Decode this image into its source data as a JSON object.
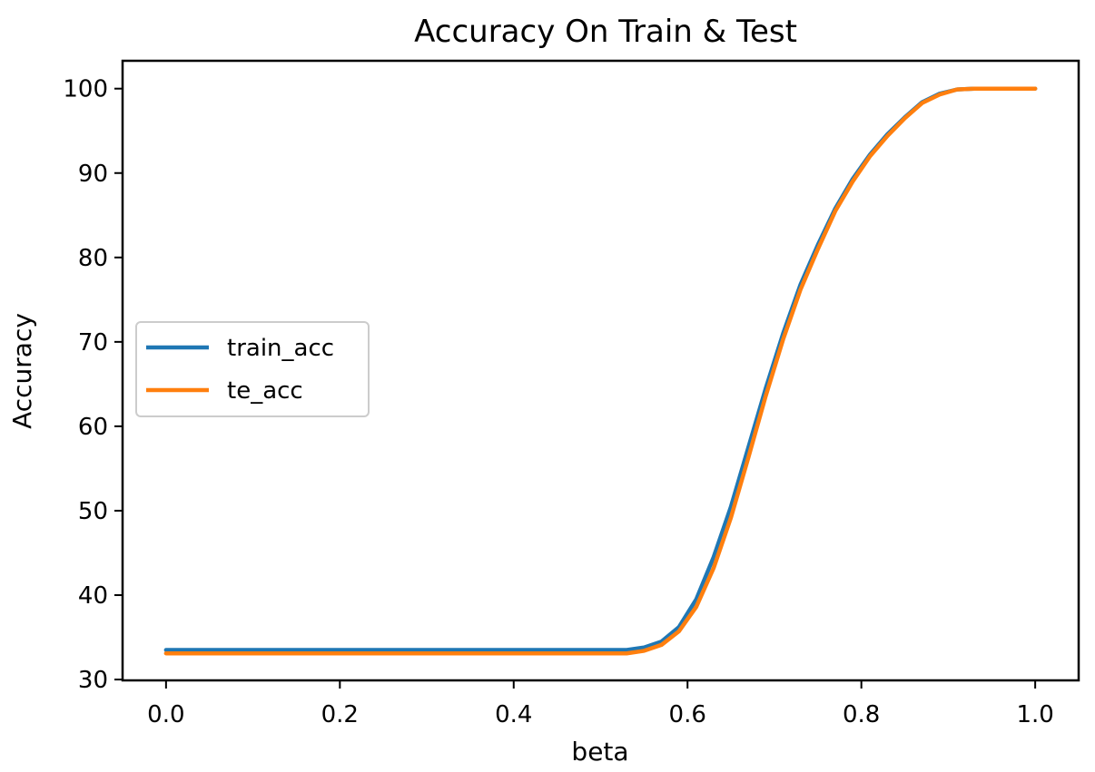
{
  "chart_data": {
    "type": "line",
    "title": "Accuracy On Train & Test",
    "xlabel": "beta",
    "ylabel": "Accuracy",
    "xlim": [
      -0.05,
      1.05
    ],
    "ylim": [
      29.9,
      103.3
    ],
    "xticks": [
      0.0,
      0.2,
      0.4,
      0.6,
      0.8,
      1.0
    ],
    "xtick_labels": [
      "0.0",
      "0.2",
      "0.4",
      "0.6",
      "0.8",
      "1.0"
    ],
    "yticks": [
      30,
      40,
      50,
      60,
      70,
      80,
      90,
      100
    ],
    "ytick_labels": [
      "30",
      "40",
      "50",
      "60",
      "70",
      "80",
      "90",
      "100"
    ],
    "grid": false,
    "legend_position": "center-left",
    "series": [
      {
        "name": "train_acc",
        "color": "#1f77b4",
        "x": [
          0.0,
          0.1,
          0.2,
          0.3,
          0.4,
          0.5,
          0.53,
          0.55,
          0.57,
          0.59,
          0.61,
          0.63,
          0.65,
          0.67,
          0.69,
          0.71,
          0.73,
          0.75,
          0.77,
          0.79,
          0.81,
          0.83,
          0.85,
          0.87,
          0.89,
          0.91,
          0.93,
          0.95,
          1.0
        ],
        "y": [
          33.5,
          33.5,
          33.5,
          33.5,
          33.5,
          33.5,
          33.5,
          33.8,
          34.5,
          36.2,
          39.5,
          44.5,
          50.5,
          57.5,
          64.5,
          71.0,
          76.8,
          81.5,
          85.8,
          89.3,
          92.2,
          94.6,
          96.6,
          98.4,
          99.4,
          99.9,
          100.0,
          100.0,
          100.0
        ]
      },
      {
        "name": "te_acc",
        "color": "#ff7f0e",
        "x": [
          0.0,
          0.1,
          0.2,
          0.3,
          0.4,
          0.5,
          0.53,
          0.55,
          0.57,
          0.59,
          0.61,
          0.63,
          0.65,
          0.67,
          0.69,
          0.71,
          0.73,
          0.75,
          0.77,
          0.79,
          0.81,
          0.83,
          0.85,
          0.87,
          0.89,
          0.91,
          0.93,
          0.95,
          1.0
        ],
        "y": [
          33.1,
          33.1,
          33.1,
          33.1,
          33.1,
          33.1,
          33.1,
          33.4,
          34.1,
          35.7,
          38.6,
          43.2,
          49.2,
          56.3,
          63.6,
          70.3,
          76.2,
          81.0,
          85.5,
          89.0,
          92.0,
          94.4,
          96.5,
          98.3,
          99.3,
          99.9,
          100.0,
          100.0,
          100.0
        ]
      }
    ]
  }
}
